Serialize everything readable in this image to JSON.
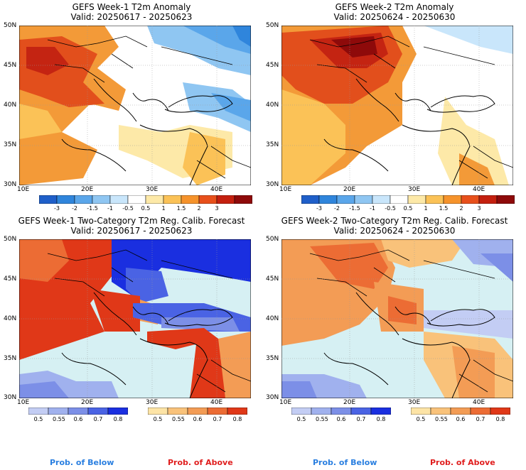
{
  "panels": [
    {
      "title": "GEFS Week-1 T2m Anomaly",
      "valid": "Valid: 20250617 - 20250623"
    },
    {
      "title": "GEFS Week-2 T2m Anomaly",
      "valid": "Valid: 20250624 - 20250630"
    },
    {
      "title": "GEFS Week-1 Two-Category T2m Reg. Calib. Forecast",
      "valid": "Valid: 20250617 - 20250623"
    },
    {
      "title": "GEFS Week-2 Two-Category T2m Reg. Calib. Forecast",
      "valid": "Valid: 20250624 - 20250630"
    }
  ],
  "lat_ticks": [
    "50N",
    "45N",
    "40N",
    "35N",
    "30N"
  ],
  "lon_ticks": [
    "10E",
    "20E",
    "30E",
    "40E"
  ],
  "anomaly_scale": {
    "labels": [
      "-3",
      "-2",
      "-1.5",
      "-1",
      "-0.5",
      "0.5",
      "1",
      "1.5",
      "2",
      "3"
    ],
    "colors": [
      "#1f5fc9",
      "#2f85dc",
      "#5aa6ea",
      "#8fc6f2",
      "#c9e6fb",
      "#ffffff",
      "#fde9a8",
      "#fbc257",
      "#f6932b",
      "#e8501b",
      "#c4200f",
      "#8e0a0a"
    ]
  },
  "prob_below": {
    "labels": [
      "0.5",
      "0.55",
      "0.6",
      "0.7",
      "0.8"
    ],
    "colors": [
      "#c3cdf4",
      "#a0b1ee",
      "#7c8fe7",
      "#4a63e4",
      "#1a2fe0"
    ]
  },
  "prob_above": {
    "labels": [
      "0.5",
      "0.55",
      "0.6",
      "0.7",
      "0.8"
    ],
    "colors": [
      "#fde4a6",
      "#f9c27a",
      "#f39c55",
      "#ec6c34",
      "#e03818"
    ]
  },
  "footer": {
    "below": "Prob. of Below",
    "above": "Prob. of Above",
    "below_color": "#2a7fe0",
    "above_color": "#e01e1e"
  }
}
